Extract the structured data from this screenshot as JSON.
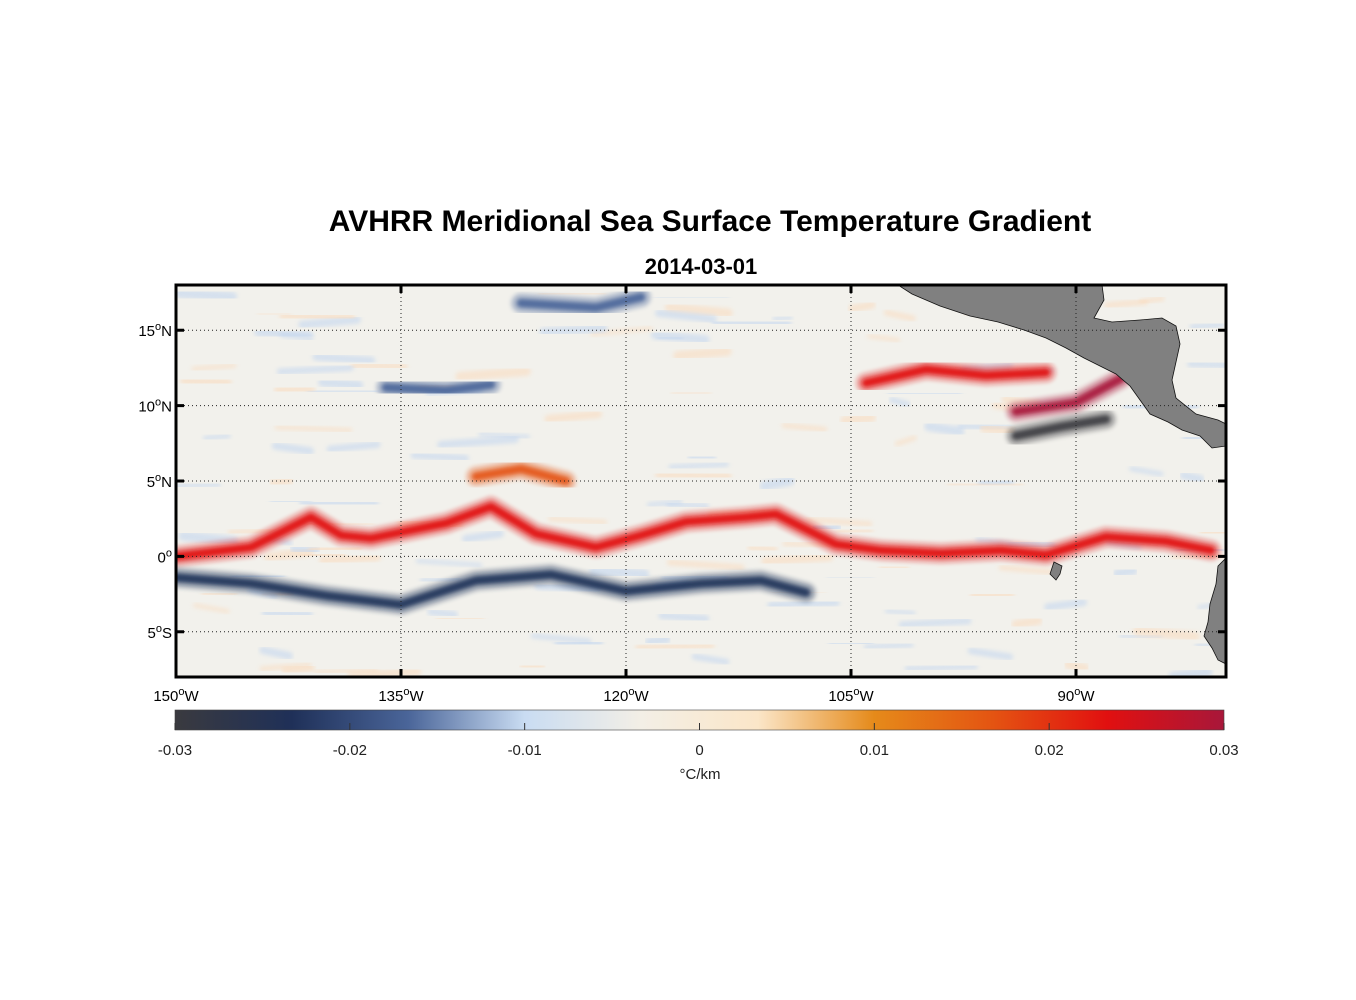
{
  "title": "AVHRR Meridional Sea Surface Temperature Gradient",
  "subtitle": "2014-03-01",
  "chart_data": {
    "type": "heatmap",
    "title": "AVHRR Meridional Sea Surface Temperature Gradient",
    "subtitle": "2014-03-01",
    "x_ticks": [
      {
        "value": -150,
        "main": "150",
        "sup": "o",
        "suffix": "W"
      },
      {
        "value": -135,
        "main": "135",
        "sup": "o",
        "suffix": "W"
      },
      {
        "value": -120,
        "main": "120",
        "sup": "o",
        "suffix": "W"
      },
      {
        "value": -105,
        "main": "105",
        "sup": "o",
        "suffix": "W"
      },
      {
        "value": -90,
        "main": "90",
        "sup": "o",
        "suffix": "W"
      }
    ],
    "y_ticks": [
      {
        "value": 15,
        "main": "15",
        "sup": "o",
        "suffix": "N"
      },
      {
        "value": 10,
        "main": "10",
        "sup": "o",
        "suffix": "N"
      },
      {
        "value": 5,
        "main": "5",
        "sup": "o",
        "suffix": "N"
      },
      {
        "value": 0,
        "main": "0",
        "sup": "o",
        "suffix": ""
      },
      {
        "value": -5,
        "main": "5",
        "sup": "o",
        "suffix": "S"
      }
    ],
    "xlim": [
      -150,
      -80
    ],
    "ylim": [
      -8,
      18
    ],
    "grid": true,
    "colorbar": {
      "clim": [
        -0.03,
        0.03
      ],
      "ticks": [
        {
          "value": -0.03,
          "label": "-0.03"
        },
        {
          "value": -0.02,
          "label": "-0.02"
        },
        {
          "value": -0.01,
          "label": "-0.01"
        },
        {
          "value": 0,
          "label": "0"
        },
        {
          "value": 0.01,
          "label": "0.01"
        },
        {
          "value": 0.02,
          "label": "0.02"
        },
        {
          "value": 0.03,
          "label": "0.03"
        }
      ],
      "label": "°C/km",
      "colors": [
        "#3a3a3f",
        "#1f3058",
        "#4a6599",
        "#c9dcf2",
        "#f3efe6",
        "#fbe6c8",
        "#e58a1a",
        "#e45512",
        "#e11010",
        "#a8173a"
      ]
    },
    "land_color": "#808080",
    "features": [
      {
        "name": "equatorial-warm-front",
        "sign": "positive",
        "path": [
          [
            -150,
            0
          ],
          [
            -145,
            0.6
          ],
          [
            -141,
            2.6
          ],
          [
            -139,
            1.4
          ],
          [
            -137,
            1.2
          ],
          [
            -132,
            2.2
          ],
          [
            -129,
            3.3
          ],
          [
            -126,
            1.5
          ],
          [
            -122,
            0.6
          ],
          [
            -119,
            1.4
          ],
          [
            -116,
            2.3
          ],
          [
            -112,
            2.6
          ],
          [
            -110,
            2.8
          ],
          [
            -106,
            0.8
          ],
          [
            -103,
            0.4
          ],
          [
            -99,
            0.2
          ],
          [
            -95,
            0.4
          ],
          [
            -92,
            0.1
          ],
          [
            -88,
            1.3
          ],
          [
            -84,
            1.0
          ],
          [
            -81,
            0.4
          ]
        ],
        "strength": 0.025
      },
      {
        "name": "north-warm-band",
        "sign": "positive",
        "path": [
          [
            -130,
            5.3
          ],
          [
            -127,
            5.8
          ],
          [
            -124,
            5.0
          ]
        ],
        "strength": 0.018
      },
      {
        "name": "south-cold-band",
        "sign": "negative",
        "path": [
          [
            -150,
            -1.4
          ],
          [
            -145,
            -1.8
          ],
          [
            -140,
            -2.6
          ],
          [
            -135,
            -3.2
          ],
          [
            -130,
            -1.6
          ],
          [
            -125,
            -1.2
          ],
          [
            -120,
            -2.3
          ],
          [
            -115,
            -1.8
          ],
          [
            -111,
            -1.6
          ],
          [
            -108,
            -2.4
          ]
        ],
        "strength": 0.022
      },
      {
        "name": "papagayo-warm",
        "sign": "positive",
        "path": [
          [
            -94,
            9.6
          ],
          [
            -90,
            10.2
          ],
          [
            -87,
            11.8
          ]
        ],
        "strength": 0.028
      },
      {
        "name": "papagayo-cold",
        "sign": "negative",
        "path": [
          [
            -94,
            8.0
          ],
          [
            -91,
            8.6
          ],
          [
            -88,
            9.1
          ]
        ],
        "strength": 0.03
      },
      {
        "name": "north-cold-streak",
        "sign": "negative",
        "path": [
          [
            -136,
            11.2
          ],
          [
            -132,
            11.0
          ],
          [
            -129,
            11.4
          ]
        ],
        "strength": 0.018
      },
      {
        "name": "northwest-cold",
        "sign": "negative",
        "path": [
          [
            -127,
            16.8
          ],
          [
            -122,
            16.5
          ],
          [
            -119,
            17.2
          ]
        ],
        "strength": 0.02
      },
      {
        "name": "tehuantepec-warm",
        "sign": "positive",
        "path": [
          [
            -104,
            11.5
          ],
          [
            -100,
            12.4
          ],
          [
            -96,
            12.0
          ],
          [
            -92,
            12.2
          ]
        ],
        "strength": 0.02
      }
    ]
  }
}
